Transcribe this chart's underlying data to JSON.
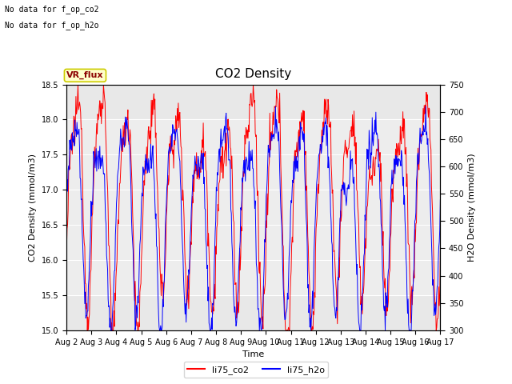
{
  "title": "CO2 Density",
  "xlabel": "Time",
  "ylabel_left": "CO2 Density (mmol/m3)",
  "ylabel_right": "H2O Density (mmol/m3)",
  "ylim_left": [
    15.0,
    18.5
  ],
  "ylim_right": [
    300,
    750
  ],
  "yticks_left": [
    15.0,
    15.5,
    16.0,
    16.5,
    17.0,
    17.5,
    18.0,
    18.5
  ],
  "yticks_right": [
    300,
    350,
    400,
    450,
    500,
    550,
    600,
    650,
    700,
    750
  ],
  "xtick_labels": [
    "Aug 2",
    "Aug 3",
    "Aug 4",
    "Aug 5",
    "Aug 6",
    "Aug 7",
    "Aug 8",
    "Aug 9",
    "Aug 10",
    "Aug 11",
    "Aug 12",
    "Aug 13",
    "Aug 14",
    "Aug 15",
    "Aug 16",
    "Aug 17"
  ],
  "text_annotations": [
    "No data for f_op_co2",
    "No data for f_op_h2o"
  ],
  "vr_flux_label": "VR_flux",
  "legend_labels": [
    "li75_co2",
    "li75_h2o"
  ],
  "co2_color": "#FF0000",
  "h2o_color": "#0000FF",
  "inner_bg_color": "#e8e8e8",
  "band_color": "#d8d8d8",
  "grid_color": "#ffffff",
  "annotation_box_facecolor": "#ffffcc",
  "annotation_box_edge": "#cccc00",
  "title_fontsize": 11,
  "label_fontsize": 8,
  "tick_fontsize": 7,
  "annotation_fontsize": 7,
  "vr_flux_fontsize": 8
}
